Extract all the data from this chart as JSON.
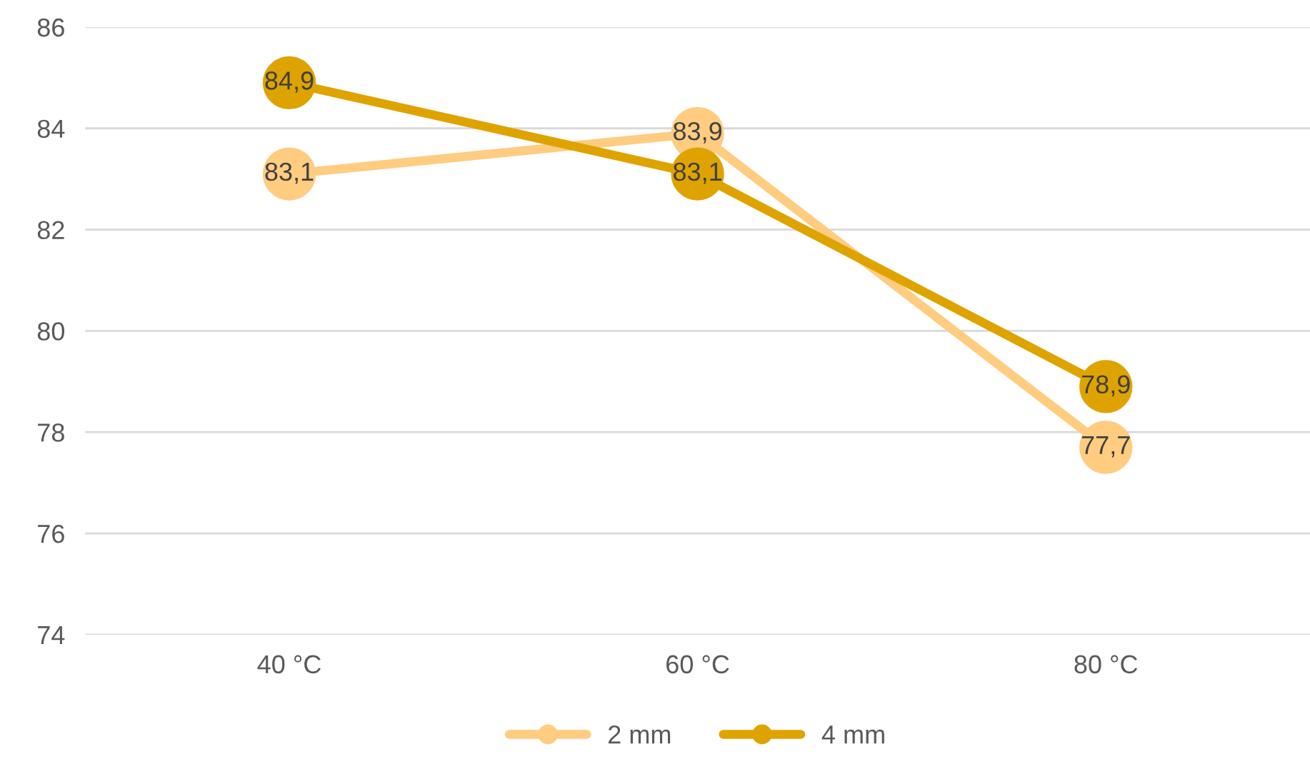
{
  "chart_data": {
    "type": "line",
    "categories": [
      "40 °C",
      "60 °C",
      "80 °C"
    ],
    "series": [
      {
        "name": "2 mm",
        "color": "#ffcc80",
        "values": [
          83.1,
          83.9,
          77.7
        ],
        "value_labels": [
          "83,1",
          "83,9",
          "77,7"
        ]
      },
      {
        "name": "4 mm",
        "color": "#dfa300",
        "values": [
          84.9,
          83.1,
          78.9
        ],
        "value_labels": [
          "84,9",
          "83,1",
          "78,9"
        ]
      }
    ],
    "ylim": [
      74,
      86
    ],
    "yticks": [
      74,
      76,
      78,
      80,
      82,
      84,
      86
    ],
    "grid": "y",
    "legend": "bottom",
    "marker": "circle",
    "line_style": "solid"
  }
}
